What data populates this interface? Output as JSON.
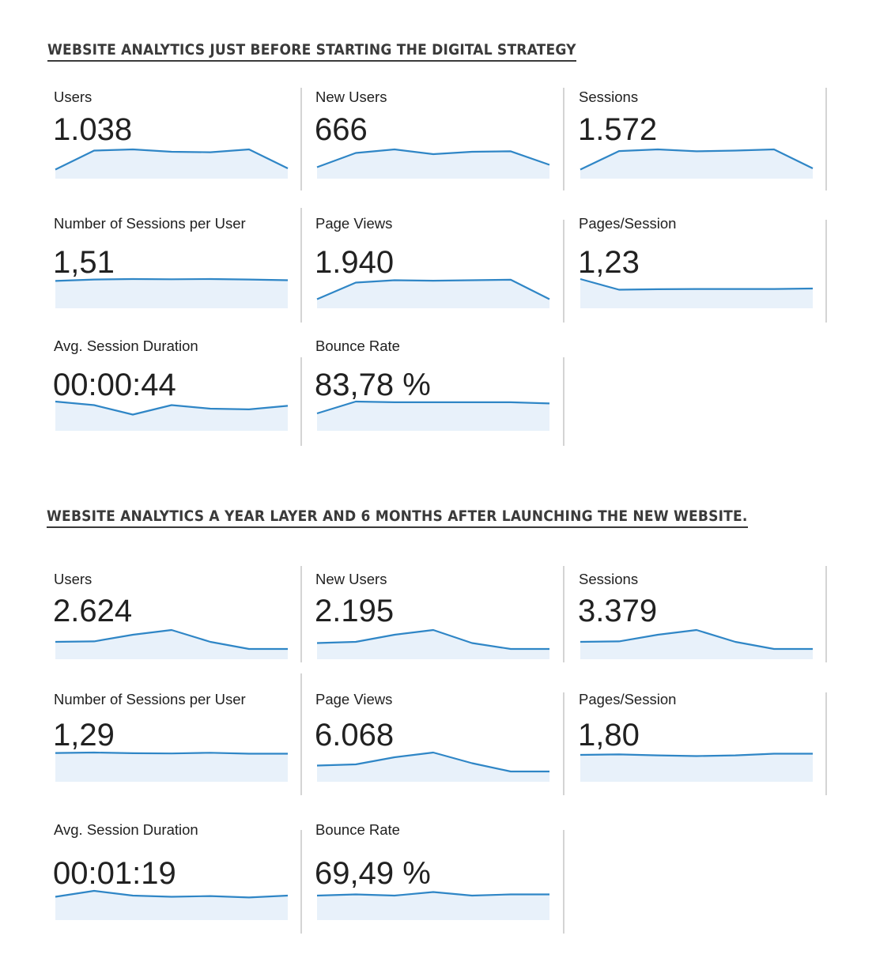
{
  "colors": {
    "line": "#2f86c6",
    "fill": "#e8f1fa",
    "divider": "#d4d4d4",
    "heading": "#3a3a3a"
  },
  "chart_data": [
    {
      "title": "WEBSITE ANALYTICS JUST BEFORE STARTING THE DIGITAL STRATEGY",
      "type": "area",
      "metrics": [
        {
          "label": "Users",
          "value": "1.038",
          "series": [
            0.15,
            0.95,
            1.0,
            0.9,
            0.88,
            1.0,
            0.2
          ]
        },
        {
          "label": "New Users",
          "value": "666",
          "series": [
            0.25,
            0.85,
            1.0,
            0.8,
            0.9,
            0.92,
            0.35
          ]
        },
        {
          "label": "Sessions",
          "value": "1.572",
          "series": [
            0.15,
            0.93,
            1.0,
            0.92,
            0.95,
            1.0,
            0.2
          ]
        },
        {
          "label": "Number of Sessions per User",
          "value": "1,51",
          "series": [
            0.92,
            0.98,
            1.0,
            0.99,
            1.0,
            0.98,
            0.95
          ]
        },
        {
          "label": "Page Views",
          "value": "1.940",
          "series": [
            0.15,
            0.85,
            0.95,
            0.93,
            0.95,
            0.97,
            0.15
          ]
        },
        {
          "label": "Pages/Session",
          "value": "1,23",
          "series": [
            1.0,
            0.55,
            0.57,
            0.58,
            0.58,
            0.58,
            0.6
          ]
        },
        {
          "label": "Avg. Session Duration",
          "value": "00:00:44",
          "series": [
            1.0,
            0.85,
            0.45,
            0.85,
            0.7,
            0.67,
            0.82
          ]
        },
        {
          "label": "Bounce Rate",
          "value": "83,78 %",
          "series": [
            0.5,
            1.0,
            0.97,
            0.97,
            0.97,
            0.97,
            0.92
          ]
        }
      ]
    },
    {
      "title": "WEBSITE ANALYTICS A YEAR LAYER AND 6 MONTHS AFTER LAUNCHING THE NEW WEBSITE.",
      "type": "area",
      "metrics": [
        {
          "label": "Users",
          "value": "2.624",
          "series": [
            0.5,
            0.52,
            0.8,
            1.0,
            0.5,
            0.2,
            0.2
          ]
        },
        {
          "label": "New Users",
          "value": "2.195",
          "series": [
            0.45,
            0.5,
            0.8,
            1.0,
            0.45,
            0.2,
            0.2
          ]
        },
        {
          "label": "Sessions",
          "value": "3.379",
          "series": [
            0.5,
            0.52,
            0.8,
            1.0,
            0.5,
            0.2,
            0.2
          ]
        },
        {
          "label": "Number of Sessions per User",
          "value": "1,29",
          "series": [
            0.98,
            1.0,
            0.97,
            0.96,
            0.99,
            0.95,
            0.95
          ]
        },
        {
          "label": "Page Views",
          "value": "6.068",
          "series": [
            0.45,
            0.5,
            0.8,
            1.0,
            0.55,
            0.2,
            0.2
          ]
        },
        {
          "label": "Pages/Session",
          "value": "1,80",
          "series": [
            0.9,
            0.92,
            0.88,
            0.85,
            0.88,
            0.95,
            0.95
          ]
        },
        {
          "label": "Avg. Session Duration",
          "value": "00:01:19",
          "series": [
            0.75,
            1.0,
            0.8,
            0.75,
            0.78,
            0.72,
            0.8
          ]
        },
        {
          "label": "Bounce Rate",
          "value": "69,49 %",
          "series": [
            0.8,
            0.85,
            0.8,
            0.95,
            0.8,
            0.85,
            0.85
          ]
        }
      ]
    }
  ]
}
